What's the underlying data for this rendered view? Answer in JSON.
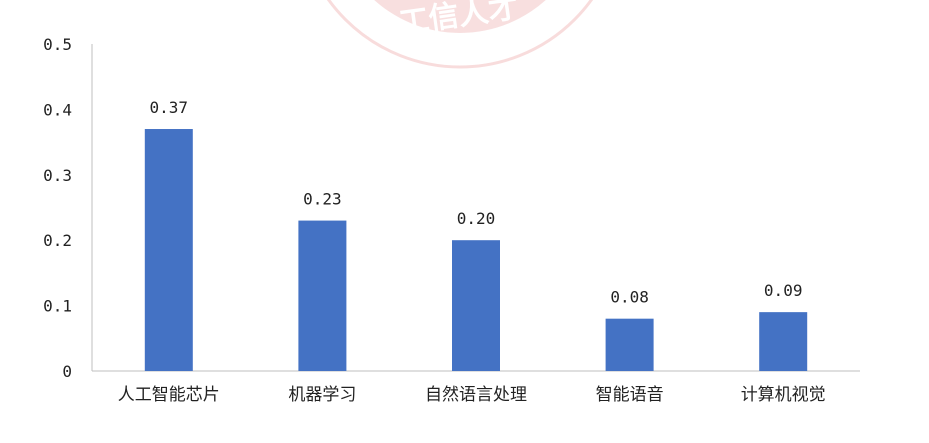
{
  "watermark": {
    "text": "工信人才",
    "color": "#f3c4c4"
  },
  "chart_data": {
    "type": "bar",
    "title": "",
    "xlabel": "",
    "ylabel": "",
    "categories": [
      "人工智能芯片",
      "机器学习",
      "自然语言处理",
      "智能语音",
      "计算机视觉"
    ],
    "values": [
      0.37,
      0.23,
      0.2,
      0.08,
      0.09
    ],
    "data_labels": [
      "0.37",
      "0.23",
      "0.20",
      "0.08",
      "0.09"
    ],
    "ylim": [
      0,
      0.5
    ],
    "yticks": [
      0,
      0.1,
      0.2,
      0.3,
      0.4,
      0.5
    ],
    "ytick_labels": [
      "0",
      "0.1",
      "0.2",
      "0.3",
      "0.4",
      "0.5"
    ],
    "grid": false,
    "legend": "none",
    "bar_color": "#4472c4"
  }
}
